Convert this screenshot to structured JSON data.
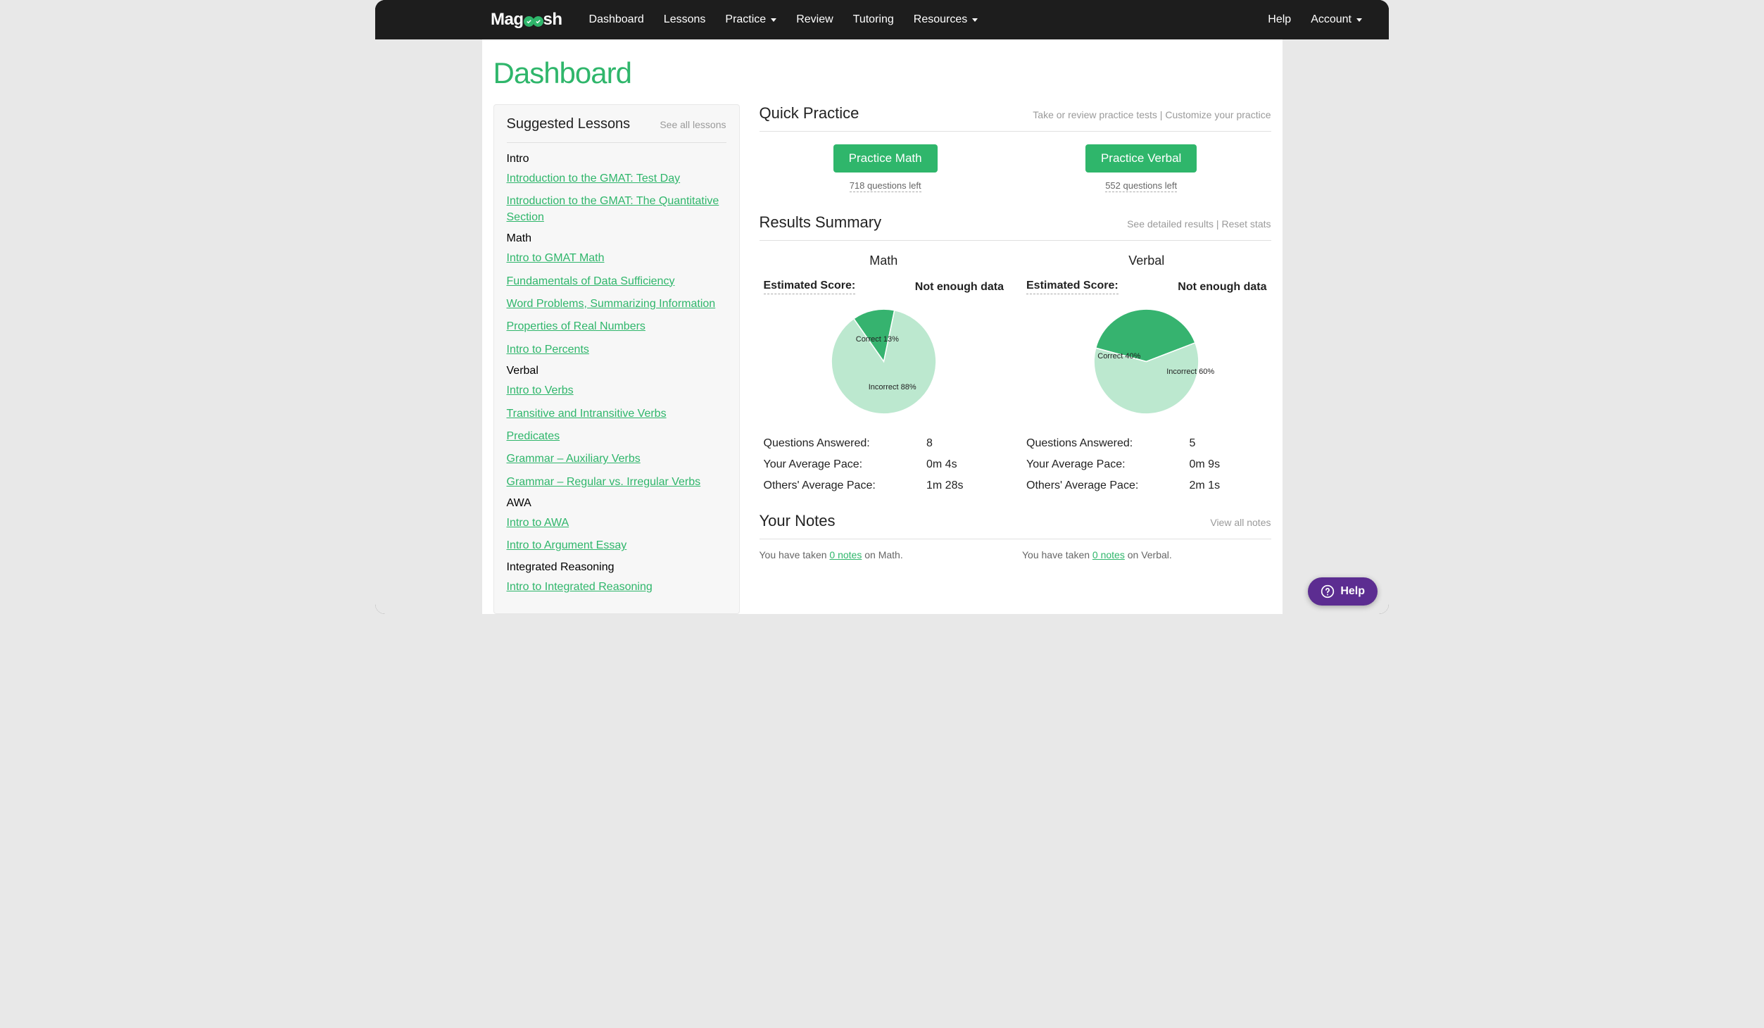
{
  "brand": {
    "pre": "Mag",
    "post": "sh"
  },
  "nav": {
    "dashboard": "Dashboard",
    "lessons": "Lessons",
    "practice": "Practice",
    "review": "Review",
    "tutoring": "Tutoring",
    "resources": "Resources",
    "help": "Help",
    "account": "Account"
  },
  "page_title": "Dashboard",
  "sidebar": {
    "title": "Suggested Lessons",
    "see_all": "See all lessons",
    "groups": [
      {
        "cat": "Intro",
        "items": [
          "Introduction to the GMAT: Test Day",
          "Introduction to the GMAT: The Quantitative Section"
        ]
      },
      {
        "cat": "Math",
        "items": [
          "Intro to GMAT Math",
          "Fundamentals of Data Sufficiency",
          "Word Problems, Summarizing Information",
          "Properties of Real Numbers",
          "Intro to Percents"
        ]
      },
      {
        "cat": "Verbal",
        "items": [
          "Intro to Verbs",
          "Transitive and Intransitive Verbs",
          "Predicates",
          "Grammar – Auxiliary Verbs",
          "Grammar – Regular vs. Irregular Verbs"
        ]
      },
      {
        "cat": "AWA",
        "items": [
          "Intro to AWA",
          "Intro to Argument Essay"
        ]
      },
      {
        "cat": "Integrated Reasoning",
        "items": [
          "Intro to Integrated Reasoning"
        ]
      }
    ]
  },
  "quick_practice": {
    "title": "Quick Practice",
    "links": {
      "take": "Take or review practice tests",
      "sep": " | ",
      "customize": "Customize your practice"
    },
    "math": {
      "btn": "Practice Math",
      "left": "718 questions left"
    },
    "verbal": {
      "btn": "Practice Verbal",
      "left": "552 questions left"
    }
  },
  "results": {
    "title": "Results Summary",
    "links": {
      "detailed": "See detailed results",
      "sep": " | ",
      "reset": "Reset stats"
    },
    "score_label": "Estimated Score:",
    "math": {
      "title": "Math",
      "score_value": "Not enough data",
      "pie": {
        "correct_pct": 13,
        "incorrect_pct": 88,
        "correct_label": "Correct 13%",
        "incorrect_label": "Incorrect 88%",
        "correct_color": "#36b36f",
        "incorrect_color": "#bce8cf"
      },
      "stats": {
        "qa_label": "Questions Answered:",
        "qa_value": "8",
        "pace_label": "Your Average Pace:",
        "pace_value": "0m 4s",
        "others_label": "Others' Average Pace:",
        "others_value": "1m 28s"
      }
    },
    "verbal": {
      "title": "Verbal",
      "score_value": "Not enough data",
      "pie": {
        "correct_pct": 40,
        "incorrect_pct": 60,
        "correct_label": "Correct 40%",
        "incorrect_label": "Incorrect 60%",
        "correct_color": "#36b36f",
        "incorrect_color": "#bce8cf"
      },
      "stats": {
        "qa_label": "Questions Answered:",
        "qa_value": "5",
        "pace_label": "Your Average Pace:",
        "pace_value": "0m 9s",
        "others_label": "Others' Average Pace:",
        "others_value": "2m 1s"
      }
    }
  },
  "notes": {
    "title": "Your Notes",
    "view_all": "View all notes",
    "math": {
      "pre": "You have taken ",
      "link": "0 notes",
      "post": " on Math."
    },
    "verbal": {
      "pre": "You have taken ",
      "link": "0 notes",
      "post": " on Verbal."
    }
  },
  "help_widget": "Help",
  "colors": {
    "accent": "#2fb66b",
    "navbar_bg": "#1d1d1d",
    "help_bg": "#5c2d91",
    "page_bg": "#e8e8e8"
  }
}
